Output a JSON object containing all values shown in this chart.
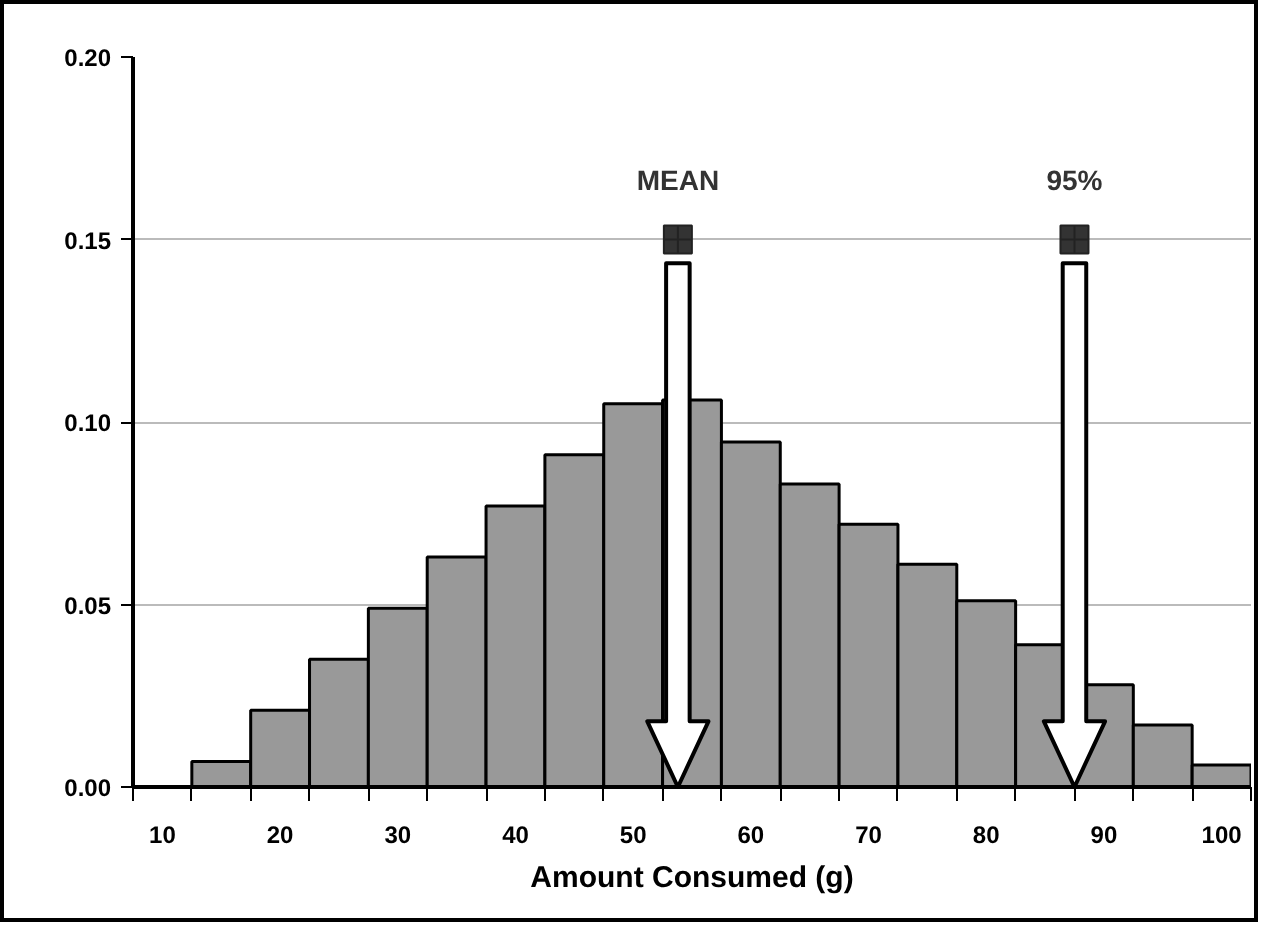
{
  "chart_data": {
    "type": "histogram",
    "xlabel": "Amount Consumed (g)",
    "bins": [
      12.5,
      17.5,
      22.5,
      27.5,
      32.5,
      37.5,
      42.5,
      47.5,
      52.5,
      57.5,
      62.5,
      67.5,
      72.5,
      77.5,
      82.5,
      87.5,
      92.5,
      97.5,
      102.5
    ],
    "values": [
      0.007,
      0.021,
      0.035,
      0.049,
      0.063,
      0.077,
      0.091,
      0.105,
      0.106,
      0.0945,
      0.083,
      0.072,
      0.061,
      0.051,
      0.039,
      0.028,
      0.017,
      0.006
    ],
    "color": "#999999",
    "xlim": [
      7.5,
      102.5
    ],
    "xticks": [
      {
        "value": 10,
        "label": "10"
      },
      {
        "value": 20,
        "label": "20"
      },
      {
        "value": 30,
        "label": "30"
      },
      {
        "value": 40,
        "label": "40"
      },
      {
        "value": 50,
        "label": "50"
      },
      {
        "value": 60,
        "label": "60"
      },
      {
        "value": 70,
        "label": "70"
      },
      {
        "value": 80,
        "label": "80"
      },
      {
        "value": 90,
        "label": "90"
      },
      {
        "value": 100,
        "label": "100"
      },
      {
        "value": 7.5,
        "label": null
      },
      {
        "value": 12.5,
        "label": null
      },
      {
        "value": 17.5,
        "label": null
      },
      {
        "value": 22.5,
        "label": null
      },
      {
        "value": 27.5,
        "label": null
      },
      {
        "value": 32.5,
        "label": null
      },
      {
        "value": 37.5,
        "label": null
      },
      {
        "value": 42.5,
        "label": null
      },
      {
        "value": 47.5,
        "label": null
      },
      {
        "value": 52.5,
        "label": null
      },
      {
        "value": 57.5,
        "label": null
      },
      {
        "value": 62.5,
        "label": null
      },
      {
        "value": 67.5,
        "label": null
      },
      {
        "value": 72.5,
        "label": null
      },
      {
        "value": 77.5,
        "label": null
      },
      {
        "value": 82.5,
        "label": null
      },
      {
        "value": 87.5,
        "label": null
      },
      {
        "value": 92.5,
        "label": null
      },
      {
        "value": 97.5,
        "label": null
      },
      {
        "value": 102.5,
        "label": null
      }
    ],
    "ylim": [
      0,
      0.2
    ],
    "yticks": [
      {
        "value": 0,
        "label": "0.00"
      },
      {
        "value": 0.05,
        "label": "0.05"
      },
      {
        "value": 0.1,
        "label": "0.10"
      },
      {
        "value": 0.15,
        "label": "0.15"
      },
      {
        "value": 0.2,
        "label": "0.20"
      }
    ],
    "grid": "y",
    "annotations": [
      {
        "text": "MEAN",
        "x": 53.8,
        "y": 0.15
      },
      {
        "text": "95%",
        "x": 87.5,
        "y": 0.15
      }
    ]
  }
}
